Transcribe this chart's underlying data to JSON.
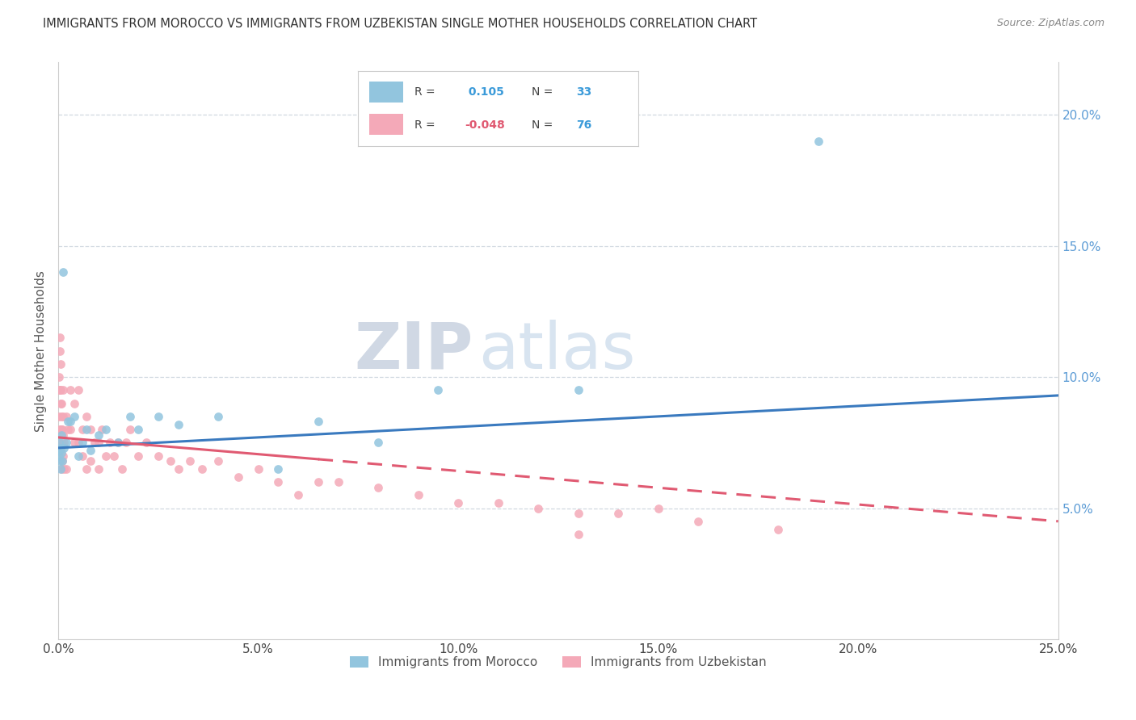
{
  "title": "IMMIGRANTS FROM MOROCCO VS IMMIGRANTS FROM UZBEKISTAN SINGLE MOTHER HOUSEHOLDS CORRELATION CHART",
  "source": "Source: ZipAtlas.com",
  "ylabel": "Single Mother Households",
  "legend_morocco": "Immigrants from Morocco",
  "legend_uzbekistan": "Immigrants from Uzbekistan",
  "r_morocco": " 0.105",
  "n_morocco": "33",
  "r_uzbekistan": "-0.048",
  "n_uzbekistan": "76",
  "morocco_color": "#92c5de",
  "uzbekistan_color": "#f4a9b8",
  "trendline_morocco_color": "#3a7abf",
  "trendline_uzbekistan_color": "#e05a72",
  "watermark_zip": "ZIP",
  "watermark_atlas": "atlas",
  "background_color": "#ffffff",
  "right_tick_color": "#5b9bd5",
  "grid_color": "#d0d8e0",
  "xlim": [
    0.0,
    0.25
  ],
  "ylim": [
    0.0,
    0.22
  ],
  "ytick_vals": [
    0.05,
    0.1,
    0.15,
    0.2
  ],
  "ytick_labels": [
    "5.0%",
    "10.0%",
    "15.0%",
    "20.0%"
  ],
  "xtick_vals": [
    0.0,
    0.05,
    0.1,
    0.15,
    0.2,
    0.25
  ],
  "xtick_labels": [
    "0.0%",
    "5.0%",
    "10.0%",
    "15.0%",
    "20.0%",
    "25.0%"
  ],
  "morocco_scatter_x": [
    0.0002,
    0.0003,
    0.0004,
    0.0005,
    0.0006,
    0.0007,
    0.0008,
    0.0009,
    0.001,
    0.0012,
    0.0015,
    0.002,
    0.0025,
    0.003,
    0.004,
    0.005,
    0.006,
    0.007,
    0.008,
    0.01,
    0.012,
    0.015,
    0.018,
    0.02,
    0.025,
    0.03,
    0.04,
    0.055,
    0.065,
    0.08,
    0.095,
    0.13,
    0.19
  ],
  "morocco_scatter_y": [
    0.07,
    0.075,
    0.072,
    0.068,
    0.073,
    0.065,
    0.078,
    0.071,
    0.068,
    0.14,
    0.073,
    0.075,
    0.083,
    0.083,
    0.085,
    0.07,
    0.075,
    0.08,
    0.072,
    0.078,
    0.08,
    0.075,
    0.085,
    0.08,
    0.085,
    0.082,
    0.085,
    0.065,
    0.083,
    0.075,
    0.095,
    0.095,
    0.19
  ],
  "uzbekistan_scatter_x": [
    0.0001,
    0.0002,
    0.0003,
    0.0003,
    0.0004,
    0.0004,
    0.0005,
    0.0005,
    0.0006,
    0.0006,
    0.0007,
    0.0007,
    0.0008,
    0.0008,
    0.0009,
    0.0009,
    0.001,
    0.001,
    0.001,
    0.0012,
    0.0012,
    0.0013,
    0.0013,
    0.0015,
    0.0015,
    0.002,
    0.002,
    0.0025,
    0.003,
    0.003,
    0.004,
    0.004,
    0.005,
    0.005,
    0.006,
    0.006,
    0.007,
    0.007,
    0.008,
    0.008,
    0.009,
    0.01,
    0.01,
    0.011,
    0.012,
    0.013,
    0.014,
    0.015,
    0.016,
    0.017,
    0.018,
    0.02,
    0.022,
    0.025,
    0.028,
    0.03,
    0.033,
    0.036,
    0.04,
    0.045,
    0.05,
    0.055,
    0.06,
    0.065,
    0.07,
    0.08,
    0.09,
    0.1,
    0.11,
    0.12,
    0.13,
    0.14,
    0.15,
    0.16,
    0.18,
    0.13
  ],
  "uzbekistan_scatter_y": [
    0.075,
    0.095,
    0.1,
    0.085,
    0.11,
    0.08,
    0.115,
    0.095,
    0.09,
    0.105,
    0.095,
    0.08,
    0.085,
    0.065,
    0.08,
    0.09,
    0.075,
    0.068,
    0.08,
    0.095,
    0.078,
    0.07,
    0.085,
    0.075,
    0.065,
    0.085,
    0.065,
    0.08,
    0.095,
    0.08,
    0.09,
    0.075,
    0.095,
    0.075,
    0.08,
    0.07,
    0.085,
    0.065,
    0.08,
    0.068,
    0.075,
    0.075,
    0.065,
    0.08,
    0.07,
    0.075,
    0.07,
    0.075,
    0.065,
    0.075,
    0.08,
    0.07,
    0.075,
    0.07,
    0.068,
    0.065,
    0.068,
    0.065,
    0.068,
    0.062,
    0.065,
    0.06,
    0.055,
    0.06,
    0.06,
    0.058,
    0.055,
    0.052,
    0.052,
    0.05,
    0.048,
    0.048,
    0.05,
    0.045,
    0.042,
    0.04
  ],
  "morocco_trend_x0": 0.0,
  "morocco_trend_x1": 0.25,
  "morocco_trend_y0": 0.073,
  "morocco_trend_y1": 0.093,
  "uzbekistan_trend_x0": 0.0,
  "uzbekistan_trend_x1": 0.25,
  "uzbekistan_trend_y0": 0.077,
  "uzbekistan_trend_y1": 0.045
}
